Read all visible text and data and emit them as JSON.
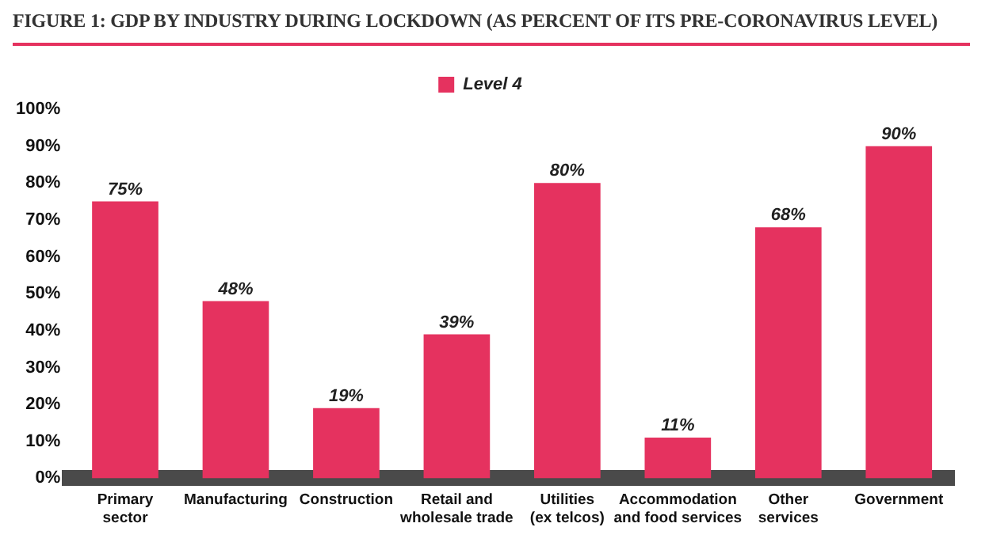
{
  "chart_data": {
    "type": "bar",
    "title": "FIGURE 1: GDP BY INDUSTRY DURING LOCKDOWN (AS PERCENT OF ITS PRE-CORONAVIRUS LEVEL)",
    "categories": [
      "Primary sector",
      "Manufacturing",
      "Construction",
      "Retail and wholesale trade",
      "Utilities (ex telcos)",
      "Accommodation and food services",
      "Other services",
      "Government"
    ],
    "series": [
      {
        "name": "Level 4",
        "color": "#e5325f",
        "values": [
          75,
          48,
          19,
          39,
          80,
          11,
          68,
          90
        ]
      }
    ],
    "ylim": [
      0,
      100
    ],
    "yticks": [
      {
        "value": 0,
        "label": "0%"
      },
      {
        "value": 10,
        "label": "10%"
      },
      {
        "value": 20,
        "label": "20%"
      },
      {
        "value": 30,
        "label": "30%"
      },
      {
        "value": 40,
        "label": "40%"
      },
      {
        "value": 50,
        "label": "50%"
      },
      {
        "value": 60,
        "label": "60%"
      },
      {
        "value": 70,
        "label": "70%"
      },
      {
        "value": 80,
        "label": "80%"
      },
      {
        "value": 90,
        "label": "90%"
      },
      {
        "value": 100,
        "label": "100%"
      }
    ],
    "value_labels": [
      "75%",
      "48%",
      "19%",
      "39%",
      "80%",
      "11%",
      "68%",
      "90%"
    ],
    "grid": false,
    "legend": "top"
  }
}
